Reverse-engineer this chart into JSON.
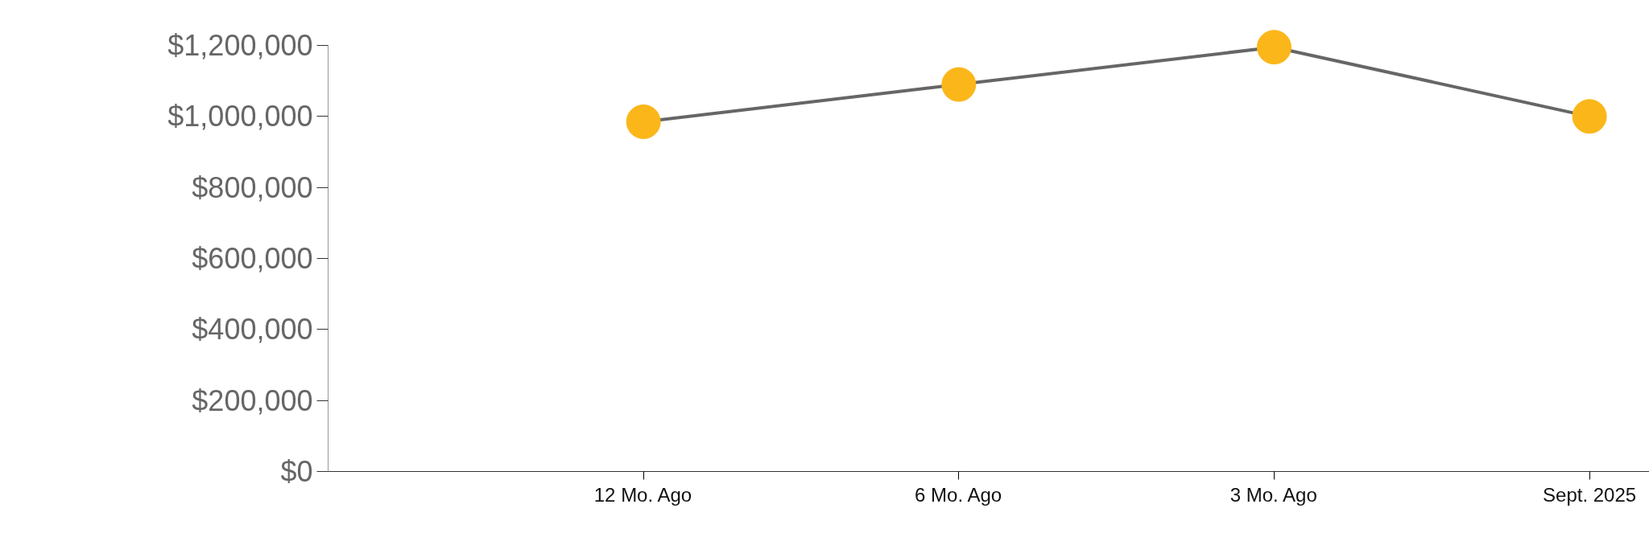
{
  "chart_data": {
    "type": "line",
    "categories": [
      "12 Mo. Ago",
      "6 Mo. Ago",
      "3 Mo. Ago",
      "Sept. 2025"
    ],
    "series": [
      {
        "color": "#fbb619",
        "values": [
          985000,
          1090000,
          1195000,
          1000000
        ]
      }
    ],
    "marker": "circle",
    "ylim": [
      0,
      1200000
    ],
    "yticks": [
      {
        "value": 0,
        "label": "$0"
      },
      {
        "value": 200000,
        "label": "$200,000"
      },
      {
        "value": 400000,
        "label": "$400,000"
      },
      {
        "value": 600000,
        "label": "$600,000"
      },
      {
        "value": 800000,
        "label": "$800,000"
      },
      {
        "value": 1000000,
        "label": "$1,000,000"
      },
      {
        "value": 1200000,
        "label": "$1,200,000"
      }
    ],
    "grid": false
  }
}
